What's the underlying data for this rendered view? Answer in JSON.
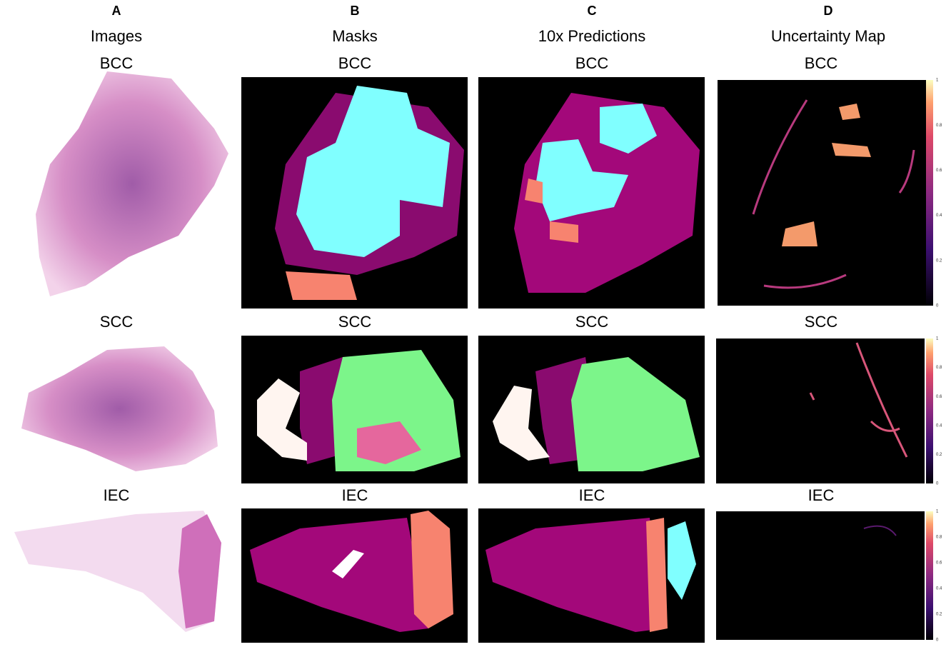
{
  "columns": [
    {
      "letter": "A",
      "title": "Images",
      "cells": [
        "BCC",
        "SCC",
        "IEC"
      ]
    },
    {
      "letter": "B",
      "title": "Masks",
      "cells": [
        "BCC",
        "SCC",
        "IEC"
      ]
    },
    {
      "letter": "C",
      "title": "10x Predictions",
      "cells": [
        "BCC",
        "SCC",
        "IEC"
      ]
    },
    {
      "letter": "D",
      "title": "Uncertainty Map",
      "cells": [
        "BCC",
        "SCC",
        "IEC"
      ]
    }
  ],
  "colorbar": {
    "ticks": [
      0,
      0.2,
      0.4,
      0.6,
      0.8,
      1
    ]
  }
}
